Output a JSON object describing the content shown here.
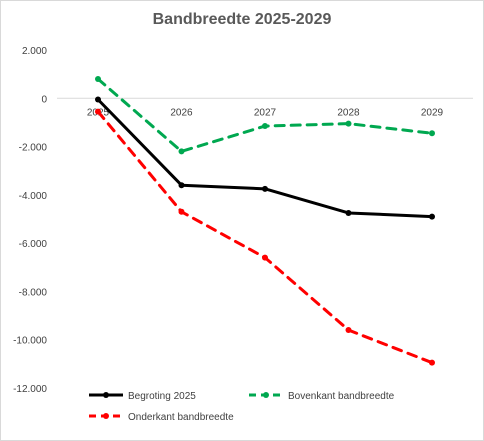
{
  "chart_data": {
    "type": "line",
    "title": "Bandbreedte 2025-2029",
    "categories": [
      "2025",
      "2026",
      "2027",
      "2028",
      "2029"
    ],
    "ylim": [
      -12000,
      2000
    ],
    "yticks": [
      2000,
      0,
      -2000,
      -4000,
      -6000,
      -8000,
      -10000,
      -12000
    ],
    "ytick_labels": [
      "2.000",
      "0",
      "-2.000",
      "-4.000",
      "-6.000",
      "-8.000",
      "-10.000",
      "-12.000"
    ],
    "grid": false,
    "legend_position": "bottom",
    "series": [
      {
        "name": "Begroting 2025",
        "values": [
          -50,
          -3600,
          -3750,
          -4750,
          -4900
        ],
        "color": "#000000",
        "dash": "solid"
      },
      {
        "name": "Bovenkant bandbreedte",
        "values": [
          800,
          -2200,
          -1150,
          -1050,
          -1450
        ],
        "color": "#00a850",
        "dash": "dashed"
      },
      {
        "name": "Onderkant bandbreedte",
        "values": [
          -550,
          -4700,
          -6600,
          -9600,
          -10950
        ],
        "color": "#ff0000",
        "dash": "dashed"
      }
    ]
  }
}
